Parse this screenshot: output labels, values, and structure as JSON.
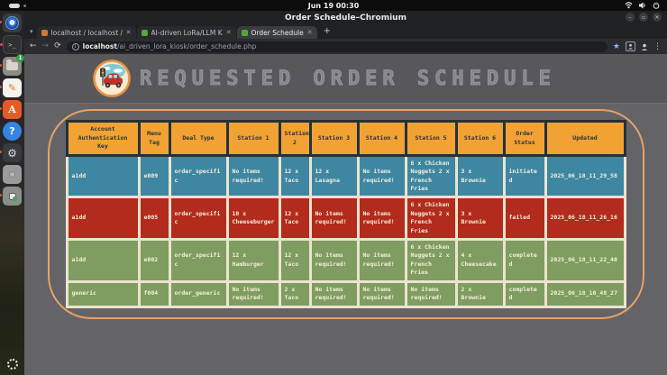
{
  "system_bar": {
    "clock": "Jun 19 00:30",
    "status_icons": [
      "wifi-icon",
      "volume-icon",
      "power-icon"
    ]
  },
  "window": {
    "title": "Order Schedule–Chromium",
    "controls": {
      "minimize": "–",
      "maximize": "▫",
      "close": "✕"
    }
  },
  "tabs": [
    {
      "title": "localhost / localhost / a",
      "favicon_color": "#d8762c",
      "active": false
    },
    {
      "title": "AI-driven LoRa/LLM Kio",
      "favicon_color": "#57a639",
      "active": false
    },
    {
      "title": "Order Schedule",
      "favicon_color": "#57a639",
      "active": true
    }
  ],
  "tab_close_glyph": "✕",
  "newtab_glyph": "+",
  "toolbar": {
    "back": "←",
    "forward": "→",
    "reload": "⟳",
    "info": "i",
    "url_host": "localhost",
    "url_path": "/ai_driven_lora_kiosk/order_schedule.php",
    "bookmark_star": "★",
    "menu_glyph": "⋮"
  },
  "page": {
    "title": "REQUESTED ORDER SCHEDULE",
    "accent_border_color": "#e8a166",
    "background_color": "#646468",
    "header_background_color": "#58585c"
  },
  "table": {
    "header_color": "#f2a232",
    "header_text_color": "#233140",
    "cell_border_color": "#ece3cf",
    "columns": [
      "Account Authentication Key",
      "Menu Tag",
      "Deal Type",
      "Station 1",
      "Station 2",
      "Station 3",
      "Station 4",
      "Station 5",
      "Station 6",
      "Order Status",
      "Updated"
    ],
    "rows": [
      {
        "color": "#3e87a3",
        "status": "initiated",
        "cells": [
          "a1dd",
          "e009",
          "order_specific",
          "No items required!",
          "12 x Taco",
          "12 x Lasagna",
          "No items required!",
          "6 x Chicken Nuggets 2 x French Fries",
          "3 x Brownie",
          "initiated",
          "2025_06_18_11_29_58"
        ]
      },
      {
        "color": "#b22b1d",
        "status": "failed",
        "cells": [
          "a1dd",
          "e005",
          "order_specific",
          "10 x Cheeseburger",
          "12 x Taco",
          "No items required!",
          "No items required!",
          "6 x Chicken Nuggets 2 x French Fries",
          "3 x Brownie",
          "failed",
          "2025_06_18_11_26_16"
        ]
      },
      {
        "color": "#7f9d60",
        "status": "completed",
        "cells": [
          "a1dd",
          "e002",
          "order_specific",
          "12 x Hamburger",
          "12 x Taco",
          "No items required!",
          "No items required!",
          "6 x Chicken Nuggets 2 x French Fries",
          "4 x Cheesecake",
          "completed",
          "2025_06_18_11_22_40"
        ]
      },
      {
        "color": "#7f9d60",
        "status": "completed",
        "cells": [
          "generic",
          "f004",
          "order_generic",
          "No items required!",
          "2 x Taco",
          "No items required!",
          "No items required!",
          "No items required!",
          "2 x Brownie",
          "completed",
          "2025_06_18_10_48_27"
        ]
      }
    ]
  },
  "dock": {
    "files_badge": "1",
    "terminal_glyph": ">_",
    "editor_glyph": "✎",
    "appa_glyph": "A",
    "help_glyph": "?",
    "settings_glyph": "⚙",
    "items": [
      "chromium",
      "terminal",
      "files",
      "text-editor",
      "app-a",
      "help",
      "settings",
      "screenshot",
      "boxes",
      "show-apps"
    ]
  }
}
